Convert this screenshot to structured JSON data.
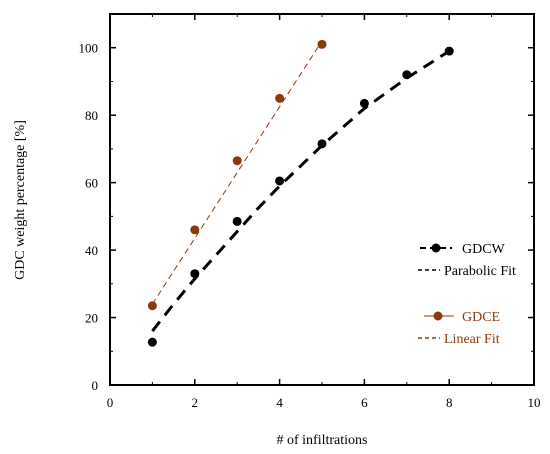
{
  "chart_data": {
    "type": "scatter",
    "title": "",
    "xlabel": "# of infiltrations",
    "ylabel": "GDC weight percentage [%]",
    "xlim": [
      0,
      10
    ],
    "ylim": [
      0,
      110
    ],
    "xticks": [
      0,
      2,
      4,
      6,
      8,
      10
    ],
    "yticks": [
      0,
      20,
      40,
      60,
      80,
      100
    ],
    "grid": false,
    "legend_position": "right",
    "series": [
      {
        "name": "GDCW",
        "color": "#000000",
        "x": [
          1,
          2,
          3,
          4,
          5,
          6,
          7,
          8
        ],
        "values": [
          12.7,
          33.0,
          48.5,
          60.5,
          71.5,
          83.5,
          92.0,
          99.0
        ]
      },
      {
        "name": "Parabolic Fit",
        "color": "#000000",
        "style": "dashed",
        "x": [
          1,
          1.5,
          2,
          2.5,
          3,
          3.5,
          4,
          4.5,
          5,
          5.5,
          6,
          6.5,
          7,
          7.5,
          8
        ],
        "values": [
          16.0,
          24.0,
          31.5,
          38.5,
          45.5,
          52.5,
          59.0,
          65.0,
          71.0,
          76.5,
          82.0,
          86.5,
          91.0,
          95.0,
          99.0
        ]
      },
      {
        "name": "GDCE",
        "color": "#8b3a0f",
        "x": [
          1,
          2,
          3,
          4,
          5
        ],
        "values": [
          23.5,
          46.0,
          66.5,
          85.0,
          101.0
        ]
      },
      {
        "name": "Linear Fit",
        "color": "#8b3a0f",
        "style": "dashed",
        "x": [
          1,
          5
        ],
        "values": [
          24.0,
          102.0
        ]
      }
    ],
    "legend": [
      {
        "label": "GDCW",
        "color": "#000000"
      },
      {
        "label": "Parabolic Fit",
        "color": "#000000"
      },
      {
        "label": "GDCE",
        "color": "#8b3a0f"
      },
      {
        "label": "Linear Fit",
        "color": "#8b3a0f"
      }
    ]
  }
}
